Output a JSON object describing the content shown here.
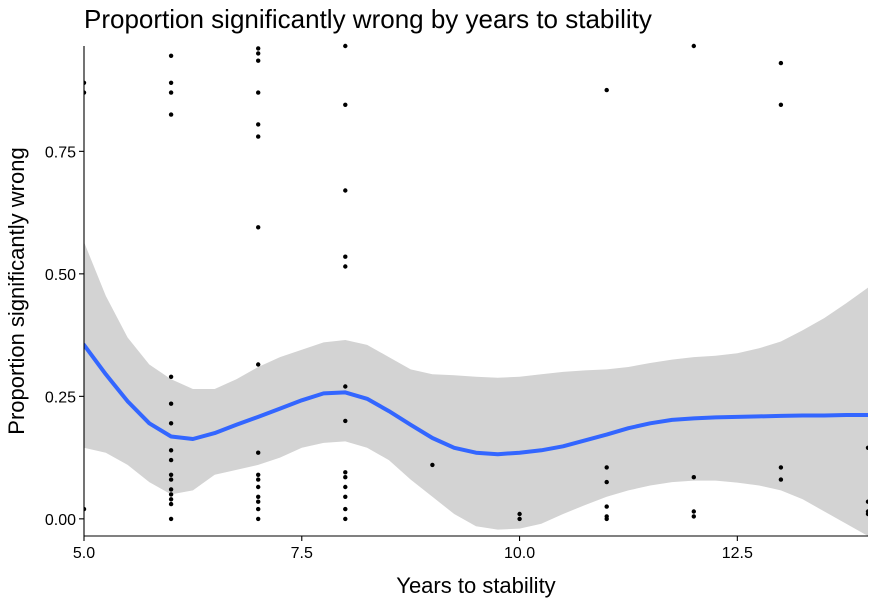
{
  "chart_data": {
    "type": "scatter",
    "title": "Proportion significantly wrong by years to stability",
    "xlabel": "Years to stability",
    "ylabel": "Proportion significantly wrong",
    "xlim": [
      5,
      14
    ],
    "ylim": [
      -0.035,
      0.965
    ],
    "x_ticks": [
      5,
      7.5,
      10,
      12.5
    ],
    "x_tick_labels": [
      "5.0",
      "7.5",
      "10.0",
      "12.5"
    ],
    "y_ticks": [
      0,
      0.25,
      0.5,
      0.75
    ],
    "y_tick_labels": [
      "0.00",
      "0.25",
      "0.50",
      "0.75"
    ],
    "grid": false,
    "legend": "none",
    "colors": {
      "points": "#000000",
      "smooth_line": "#3366FF",
      "ribbon": "#D3D3D3"
    },
    "points": [
      [
        5,
        0.87
      ],
      [
        5,
        0.89
      ],
      [
        5,
        0.02
      ],
      [
        6,
        0.945
      ],
      [
        6,
        0.89
      ],
      [
        6,
        0.87
      ],
      [
        6,
        0.825
      ],
      [
        6,
        0.29
      ],
      [
        6,
        0.235
      ],
      [
        6,
        0.195
      ],
      [
        6,
        0.14
      ],
      [
        6,
        0.12
      ],
      [
        6,
        0.09
      ],
      [
        6,
        0.08
      ],
      [
        6,
        0.06
      ],
      [
        6,
        0.05
      ],
      [
        6,
        0.04
      ],
      [
        6,
        0.03
      ],
      [
        6,
        0.0
      ],
      [
        7,
        0.96
      ],
      [
        7,
        0.95
      ],
      [
        7,
        0.935
      ],
      [
        7,
        0.87
      ],
      [
        7,
        0.805
      ],
      [
        7,
        0.78
      ],
      [
        7,
        0.595
      ],
      [
        7,
        0.315
      ],
      [
        7,
        0.135
      ],
      [
        7,
        0.09
      ],
      [
        7,
        0.08
      ],
      [
        7,
        0.065
      ],
      [
        7,
        0.045
      ],
      [
        7,
        0.035
      ],
      [
        7,
        0.02
      ],
      [
        7,
        0.0
      ],
      [
        8,
        0.965
      ],
      [
        8,
        0.845
      ],
      [
        8,
        0.67
      ],
      [
        8,
        0.535
      ],
      [
        8,
        0.515
      ],
      [
        8,
        0.27
      ],
      [
        8,
        0.2
      ],
      [
        8,
        0.095
      ],
      [
        8,
        0.085
      ],
      [
        8,
        0.065
      ],
      [
        8,
        0.045
      ],
      [
        8,
        0.02
      ],
      [
        8,
        0.0
      ],
      [
        9,
        0.11
      ],
      [
        10,
        0.01
      ],
      [
        10,
        0.0
      ],
      [
        11,
        0.875
      ],
      [
        11,
        0.105
      ],
      [
        11,
        0.075
      ],
      [
        11,
        0.025
      ],
      [
        11,
        0.005
      ],
      [
        11,
        0.0
      ],
      [
        12,
        0.965
      ],
      [
        12,
        0.085
      ],
      [
        12,
        0.015
      ],
      [
        12,
        0.005
      ],
      [
        13,
        0.93
      ],
      [
        13,
        0.845
      ],
      [
        13,
        0.105
      ],
      [
        13,
        0.08
      ],
      [
        14,
        0.145
      ],
      [
        14,
        0.035
      ],
      [
        14,
        0.015
      ],
      [
        14,
        0.01
      ]
    ],
    "smooth": {
      "method": "loess",
      "x": [
        5.0,
        5.25,
        5.5,
        5.75,
        6.0,
        6.25,
        6.5,
        6.75,
        7.0,
        7.25,
        7.5,
        7.75,
        8.0,
        8.25,
        8.5,
        8.75,
        9.0,
        9.25,
        9.5,
        9.75,
        10.0,
        10.25,
        10.5,
        10.75,
        11.0,
        11.25,
        11.5,
        11.75,
        12.0,
        12.25,
        12.5,
        12.75,
        13.0,
        13.25,
        13.5,
        13.75,
        14.0
      ],
      "y": [
        0.355,
        0.295,
        0.24,
        0.195,
        0.168,
        0.163,
        0.175,
        0.192,
        0.208,
        0.225,
        0.242,
        0.256,
        0.258,
        0.245,
        0.22,
        0.192,
        0.165,
        0.145,
        0.135,
        0.132,
        0.135,
        0.14,
        0.148,
        0.16,
        0.172,
        0.185,
        0.195,
        0.202,
        0.205,
        0.207,
        0.208,
        0.209,
        0.21,
        0.211,
        0.211,
        0.212,
        0.212
      ],
      "lower": [
        0.145,
        0.135,
        0.11,
        0.075,
        0.05,
        0.058,
        0.09,
        0.1,
        0.11,
        0.125,
        0.145,
        0.155,
        0.158,
        0.145,
        0.12,
        0.08,
        0.045,
        0.01,
        -0.015,
        -0.022,
        -0.02,
        -0.01,
        0.01,
        0.028,
        0.045,
        0.058,
        0.068,
        0.075,
        0.078,
        0.078,
        0.074,
        0.068,
        0.058,
        0.04,
        0.015,
        -0.01,
        -0.035
      ],
      "upper": [
        0.565,
        0.455,
        0.37,
        0.315,
        0.285,
        0.265,
        0.265,
        0.285,
        0.31,
        0.33,
        0.345,
        0.36,
        0.365,
        0.355,
        0.33,
        0.305,
        0.295,
        0.293,
        0.29,
        0.288,
        0.29,
        0.295,
        0.3,
        0.303,
        0.305,
        0.31,
        0.318,
        0.325,
        0.33,
        0.333,
        0.338,
        0.348,
        0.362,
        0.385,
        0.41,
        0.44,
        0.472
      ]
    }
  }
}
